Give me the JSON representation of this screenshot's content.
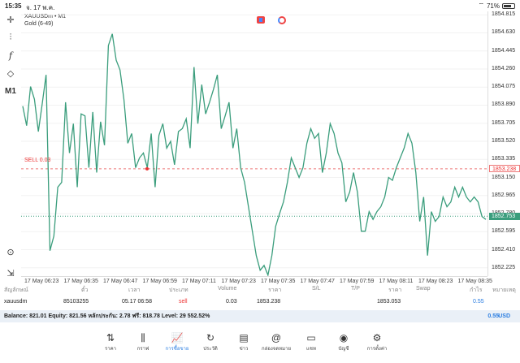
{
  "status_bar": {
    "time": "15:35",
    "date": "จ. 17 พ.ค.",
    "battery": "71%"
  },
  "symbol": {
    "line1": "XAUUSDm • M1",
    "line2": "Gold (6-49)"
  },
  "toolbar_icons": [
    "crosshair-icon",
    "candles-icon",
    "function-icon",
    "objects-icon",
    "timeframe-m1",
    "zoom-icon",
    "export-icon"
  ],
  "timeframe_label": "M1",
  "sell_line": {
    "label": "SELL 0.03",
    "price": "1853.238"
  },
  "bid_tag": "1852.753",
  "price_axis": [
    "1854.815",
    "1854.630",
    "1854.445",
    "1854.260",
    "1854.075",
    "1853.890",
    "1853.705",
    "1853.520",
    "1853.335",
    "1853.150",
    "1852.965",
    "1852.780",
    "1852.595",
    "1852.410",
    "1852.225"
  ],
  "time_axis": [
    "17 May 06:23",
    "17 May 06:35",
    "17 May 06:47",
    "17 May 06:59",
    "17 May 07:11",
    "17 May 07:23",
    "17 May 07:35",
    "17 May 07:47",
    "17 May 07:59",
    "17 May 08:11",
    "17 May 08:23",
    "17 May 08:35"
  ],
  "chart_data": {
    "type": "line",
    "ylim": [
      2110,
      2145
    ],
    "series": [
      {
        "values": [
          1853.88,
          1853.68,
          1854.08,
          1853.95,
          1853.62,
          1853.9,
          1854.2,
          1852.4,
          1852.55,
          1853.05,
          1853.1,
          1853.92,
          1853.4,
          1853.7,
          1853.05,
          1853.8,
          1853.78,
          1853.25,
          1853.82,
          1853.2,
          1853.72,
          1853.48,
          1854.5,
          1854.62,
          1854.35,
          1854.25,
          1853.95,
          1853.5,
          1853.6,
          1853.25,
          1853.35,
          1853.4,
          1853.25,
          1853.6,
          1853.05,
          1853.58,
          1853.7,
          1853.45,
          1853.52,
          1853.28,
          1853.62,
          1853.65,
          1853.75,
          1853.45,
          1854.28,
          1853.7,
          1854.1,
          1853.8,
          1853.92,
          1854.05,
          1854.2,
          1853.65,
          1853.78,
          1853.92,
          1853.45,
          1853.65,
          1853.25,
          1853.1,
          1852.85,
          1852.6,
          1852.35,
          1852.2,
          1852.25,
          1852.15,
          1852.35,
          1852.65,
          1852.78,
          1852.9,
          1853.1,
          1853.35,
          1853.25,
          1853.15,
          1853.25,
          1853.5,
          1853.65,
          1853.55,
          1853.6,
          1853.2,
          1853.4,
          1853.7,
          1853.6,
          1853.4,
          1853.3,
          1852.9,
          1853.0,
          1853.2,
          1853.0,
          1852.6,
          1852.6,
          1852.8,
          1852.72,
          1852.8,
          1852.85,
          1852.95,
          1853.15,
          1853.12,
          1853.25,
          1853.35,
          1853.45,
          1853.6,
          1853.5,
          1853.2,
          1852.7,
          1852.95,
          1852.35,
          1852.8,
          1852.7,
          1852.75,
          1852.95,
          1852.85,
          1852.9,
          1853.05,
          1852.95,
          1853.05,
          1852.95,
          1852.9,
          1852.95,
          1852.9,
          1852.75,
          1852.72
        ]
      }
    ]
  },
  "table": {
    "headers": [
      "สัญลักษณ์",
      "ตั๋ว",
      "เวลา",
      "ประเภท",
      "Volume",
      "ราคา",
      "S/L",
      "T/P",
      "ราคา",
      "Swap",
      "กำไร",
      "หมายเหตุ"
    ],
    "row": {
      "symbol": "xauusdm",
      "ticket": "85103255",
      "time": "05.17 06:58",
      "type": "sell",
      "volume": "0.03",
      "price": "1853.238",
      "current_price": "1853.053",
      "profit": "0.55"
    }
  },
  "balance": {
    "text": "Balance: 821.01 Equity: 821.56 หลักประกัน: 2.78 ฟรี: 818.78 Level: 29 552.52%",
    "profit": "0.55",
    "currency": "USD"
  },
  "nav": [
    {
      "label": "ราคา",
      "icon": "quotes-icon",
      "glyph": "⇅"
    },
    {
      "label": "กราฟ",
      "icon": "chart-icon",
      "glyph": "⫼"
    },
    {
      "label": "การซื้อขาย",
      "icon": "trade-icon",
      "glyph": "📈"
    },
    {
      "label": "ประวัติ",
      "icon": "history-icon",
      "glyph": "↻"
    },
    {
      "label": "ข่าว",
      "icon": "news-icon",
      "glyph": "▤"
    },
    {
      "label": "กล่องจดหมาย",
      "icon": "mailbox-icon",
      "glyph": "@"
    },
    {
      "label": "แชท",
      "icon": "chat-icon",
      "glyph": "▭"
    },
    {
      "label": "บัญชี",
      "icon": "account-icon",
      "glyph": "◉"
    },
    {
      "label": "การตั้งค่า",
      "icon": "settings-icon",
      "glyph": "⚙"
    }
  ],
  "colors": {
    "line": "#3a9d7c",
    "sell": "#e33",
    "accent": "#2a7de1"
  }
}
